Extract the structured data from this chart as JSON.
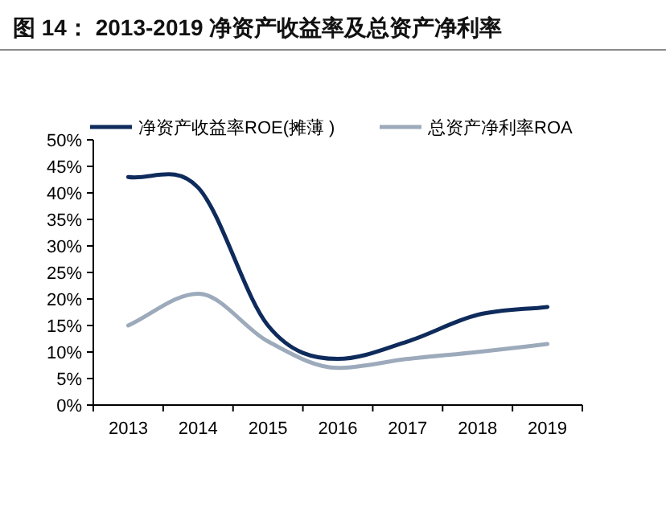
{
  "chart_data": {
    "type": "line",
    "title": "图 14：  2013-2019 净资产收益率及总资产净利率",
    "categories": [
      "2013",
      "2014",
      "2015",
      "2016",
      "2017",
      "2018",
      "2019"
    ],
    "series": [
      {
        "name": "净资产收益率ROE(摊薄 )",
        "color": "#0e2b5c",
        "values": [
          43,
          41,
          15,
          8.7,
          12,
          17,
          18.5
        ]
      },
      {
        "name": "总资产净利率ROA",
        "color": "#9caabb",
        "values": [
          15,
          21,
          12,
          7,
          8.7,
          10,
          11.5
        ]
      }
    ],
    "ylim": [
      0,
      50
    ],
    "yticks": [
      {
        "value": 0,
        "label": "0%"
      },
      {
        "value": 5,
        "label": "5%"
      },
      {
        "value": 10,
        "label": "10%"
      },
      {
        "value": 15,
        "label": "15%"
      },
      {
        "value": 20,
        "label": "20%"
      },
      {
        "value": 25,
        "label": "25%"
      },
      {
        "value": 30,
        "label": "30%"
      },
      {
        "value": 35,
        "label": "35%"
      },
      {
        "value": 40,
        "label": "40%"
      },
      {
        "value": 45,
        "label": "45%"
      },
      {
        "value": 50,
        "label": "50%"
      }
    ],
    "legend": "top",
    "grid": false,
    "marker": "none",
    "line_style": "solid"
  }
}
